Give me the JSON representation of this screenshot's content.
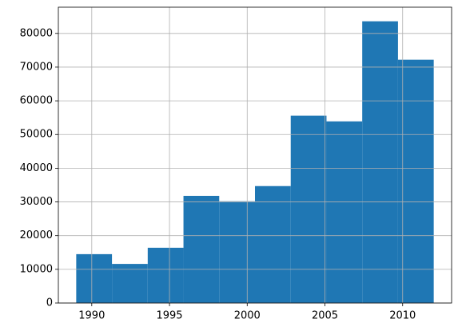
{
  "chart_data": {
    "type": "histogram",
    "bins": [
      1989,
      1991.3,
      1993.6,
      1995.9,
      1998.2,
      2000.5,
      2002.8,
      2005.1,
      2007.4,
      2009.7,
      2012
    ],
    "values": [
      14500,
      11600,
      16400,
      31800,
      30200,
      34700,
      55600,
      53900,
      83600,
      72200
    ],
    "color": "#1f77b4",
    "xlim": [
      1987.85,
      2013.15
    ],
    "xticks": [
      1990,
      1995,
      2000,
      2005,
      2010
    ],
    "ylim": [
      0,
      87780
    ],
    "yticks": [
      0,
      10000,
      20000,
      30000,
      40000,
      50000,
      60000,
      70000,
      80000
    ],
    "grid": true
  }
}
